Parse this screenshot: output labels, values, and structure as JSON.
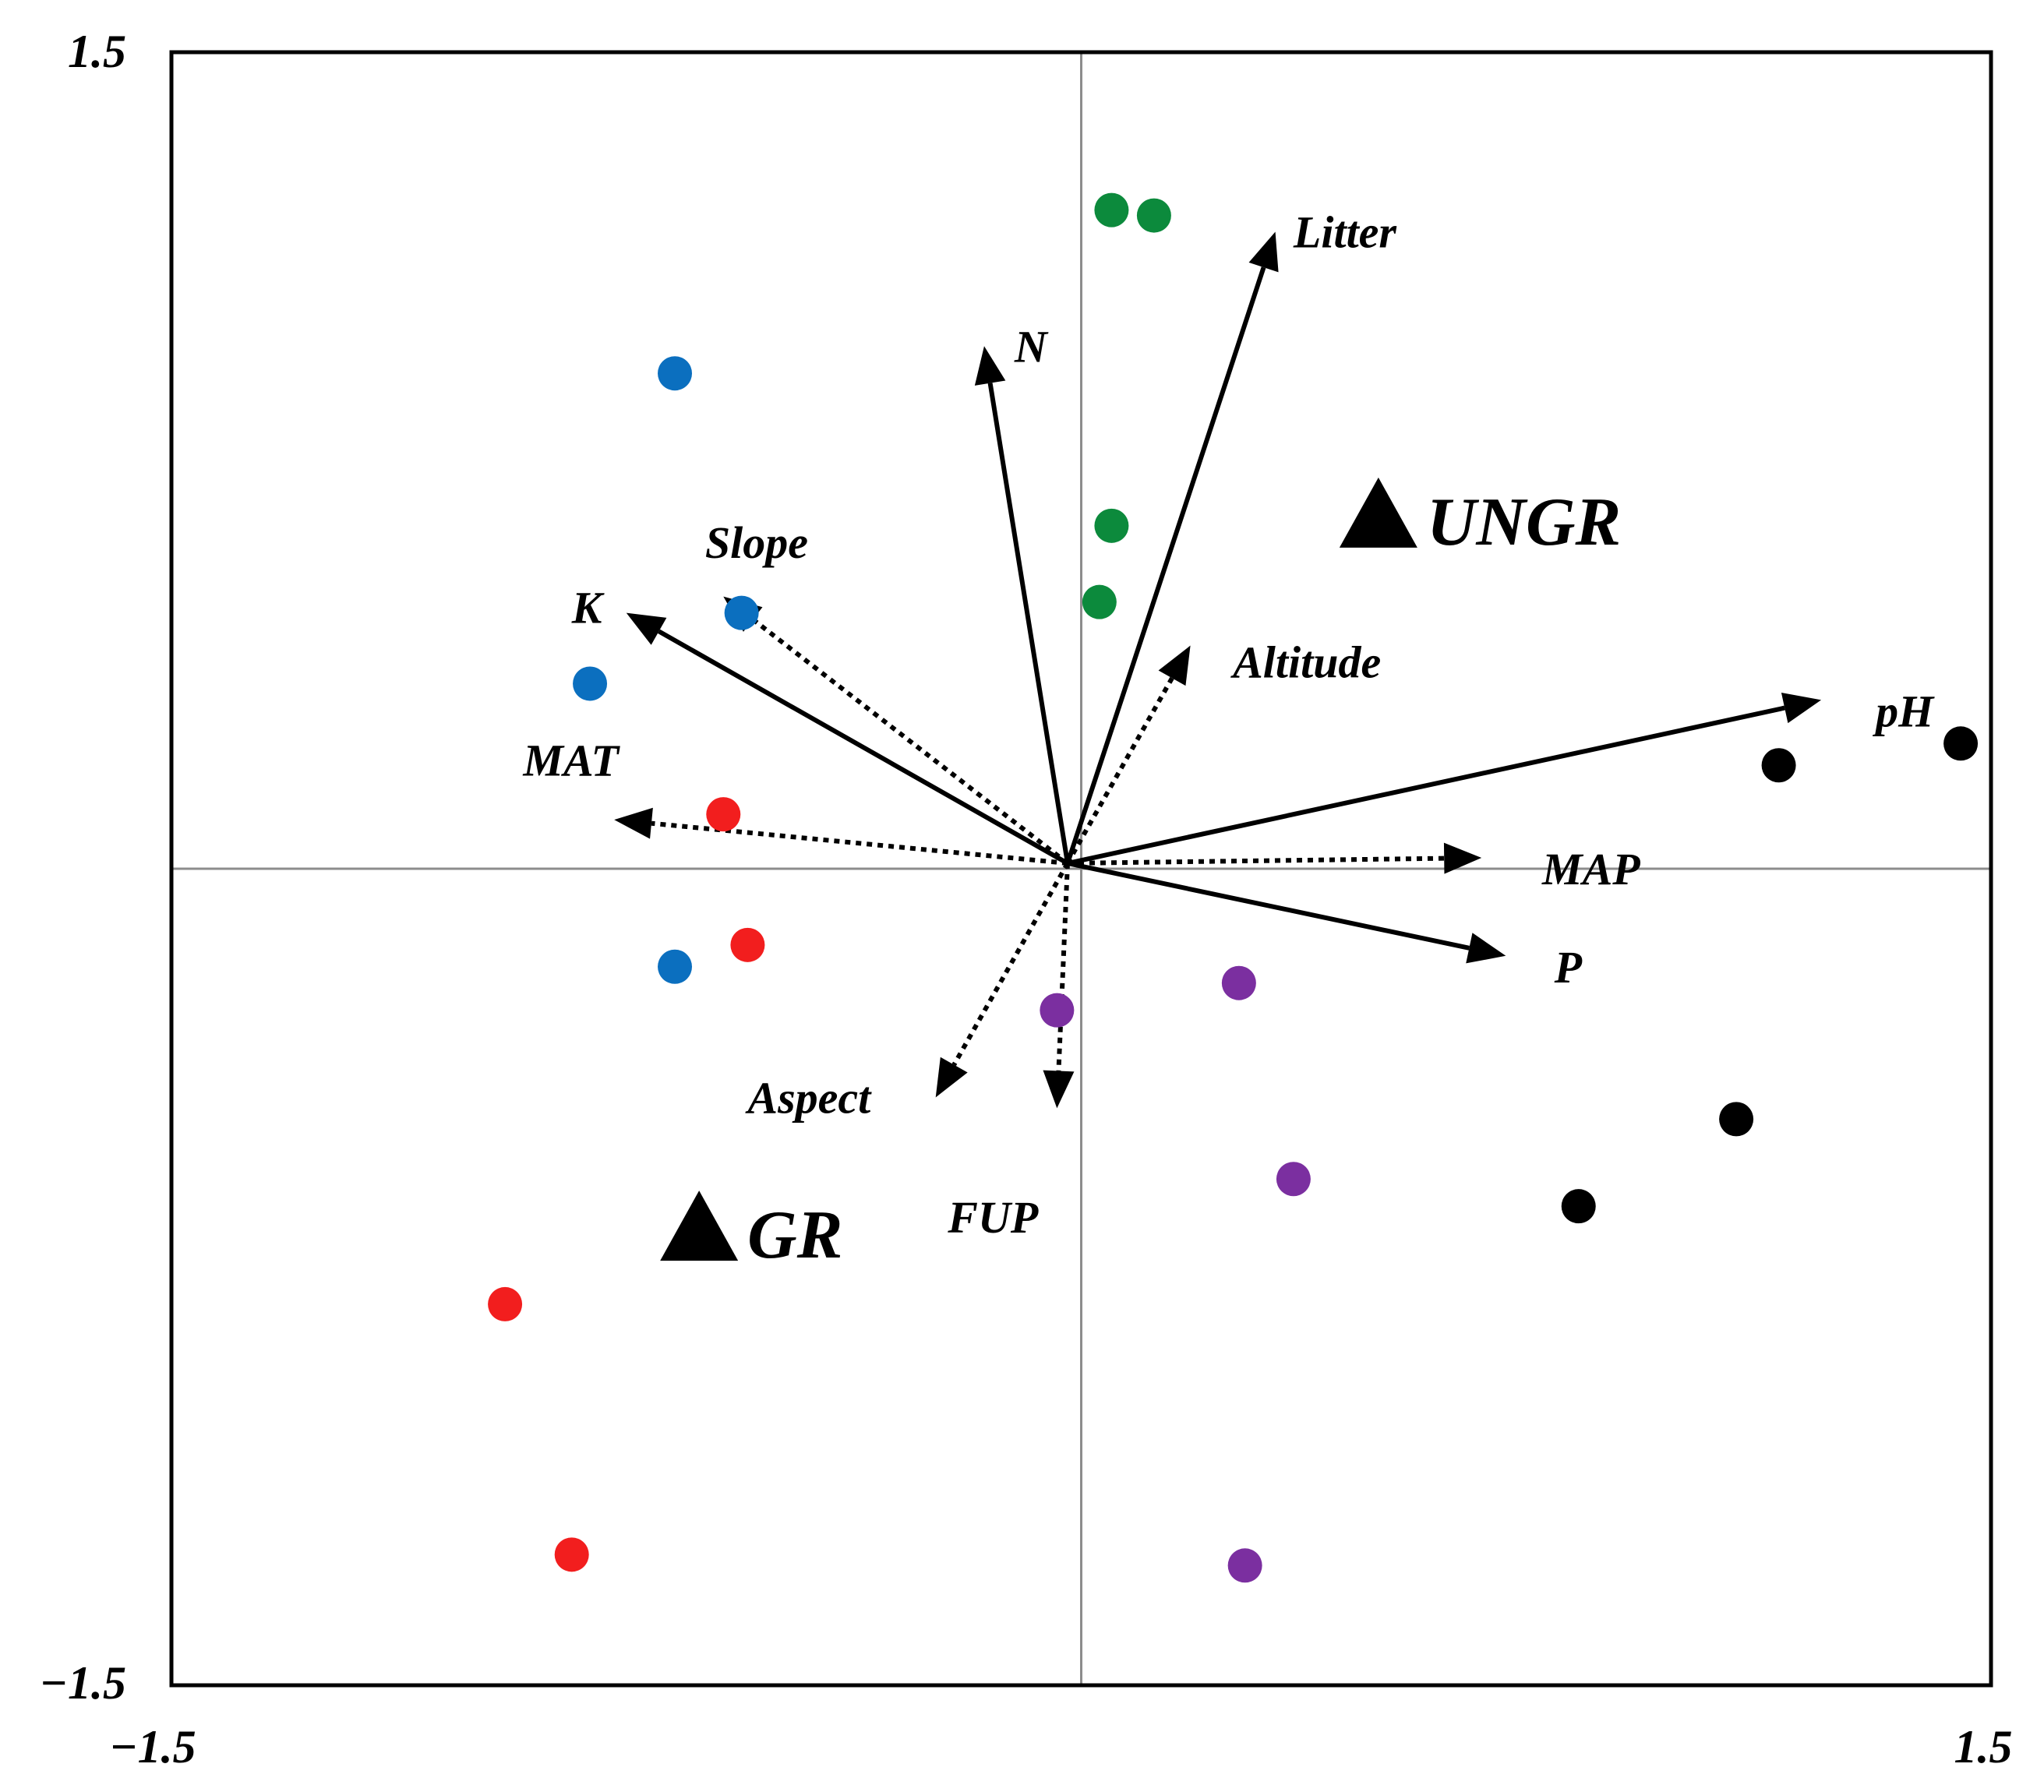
{
  "chart_data": {
    "type": "scatter",
    "title": "",
    "xlabel": "",
    "ylabel": "",
    "xlim": [
      -1.5,
      1.5
    ],
    "ylim": [
      -1.5,
      1.5
    ],
    "ticks": {
      "x_min": "−1.5",
      "x_max": "1.5",
      "y_min": "−1.5",
      "y_max": "1.5"
    },
    "zero_lines": true,
    "colors": {
      "blue": "#0b6fbf",
      "green": "#0c8a3c",
      "red": "#f21e1e",
      "purple": "#7b2fa0",
      "black": "#000000",
      "zero_line": "#8c8c8c",
      "frame": "#000000"
    },
    "series": [
      {
        "color": "blue",
        "points": [
          [
            -0.67,
            0.91
          ],
          [
            -0.56,
            0.47
          ],
          [
            -0.81,
            0.34
          ],
          [
            -0.67,
            -0.18
          ]
        ]
      },
      {
        "color": "green",
        "points": [
          [
            0.05,
            1.21
          ],
          [
            0.12,
            1.2
          ],
          [
            0.05,
            0.63
          ],
          [
            0.03,
            0.49
          ]
        ]
      },
      {
        "color": "red",
        "points": [
          [
            -0.59,
            0.1
          ],
          [
            -0.55,
            -0.14
          ],
          [
            -0.95,
            -0.8
          ],
          [
            -0.84,
            -1.26
          ]
        ]
      },
      {
        "color": "purple",
        "points": [
          [
            -0.04,
            -0.26
          ],
          [
            0.26,
            -0.21
          ],
          [
            0.35,
            -0.57
          ],
          [
            0.27,
            -1.28
          ]
        ]
      },
      {
        "color": "black",
        "points": [
          [
            1.15,
            0.19
          ],
          [
            1.45,
            0.23
          ],
          [
            1.08,
            -0.46
          ],
          [
            0.82,
            -0.62
          ]
        ]
      }
    ],
    "vectors": [
      {
        "name": "Litter",
        "x": 0.32,
        "y": 1.17,
        "style": "solid"
      },
      {
        "name": "N",
        "x": -0.16,
        "y": 0.96,
        "style": "solid"
      },
      {
        "name": "K",
        "x": -0.75,
        "y": 0.47,
        "style": "solid"
      },
      {
        "name": "pH",
        "x": 1.22,
        "y": 0.31,
        "style": "solid"
      },
      {
        "name": "P",
        "x": 0.7,
        "y": -0.16,
        "style": "solid"
      },
      {
        "name": "Slope",
        "x": -0.59,
        "y": 0.5,
        "style": "dotted"
      },
      {
        "name": "Altitude",
        "x": 0.18,
        "y": 0.41,
        "style": "dotted"
      },
      {
        "name": "MAT",
        "x": -0.77,
        "y": 0.09,
        "style": "dotted"
      },
      {
        "name": "MAP",
        "x": 0.66,
        "y": 0.02,
        "style": "dotted"
      },
      {
        "name": "Aspect",
        "x": -0.24,
        "y": -0.42,
        "style": "dotted"
      },
      {
        "name": "FUP",
        "x": -0.04,
        "y": -0.44,
        "style": "dotted"
      }
    ],
    "vector_labels": [
      {
        "name": "Litter",
        "x": 0.35,
        "y": 1.17
      },
      {
        "name": "N",
        "x": -0.11,
        "y": 0.96
      },
      {
        "name": "Slope",
        "x": -0.62,
        "y": 0.6
      },
      {
        "name": "K",
        "x": -0.84,
        "y": 0.48
      },
      {
        "name": "Altitude",
        "x": 0.25,
        "y": 0.38
      },
      {
        "name": "pH",
        "x": 1.31,
        "y": 0.29
      },
      {
        "name": "MAT",
        "x": -0.92,
        "y": 0.2
      },
      {
        "name": "MAP",
        "x": 0.76,
        "y": 0.0
      },
      {
        "name": "P",
        "x": 0.78,
        "y": -0.18
      },
      {
        "name": "Aspect",
        "x": -0.55,
        "y": -0.42
      },
      {
        "name": "FUP",
        "x": -0.22,
        "y": -0.64
      }
    ],
    "centroids": [
      {
        "name": "UNGR",
        "x": 0.49,
        "y": 0.65
      },
      {
        "name": "GR",
        "x": -0.63,
        "y": -0.66
      }
    ]
  }
}
